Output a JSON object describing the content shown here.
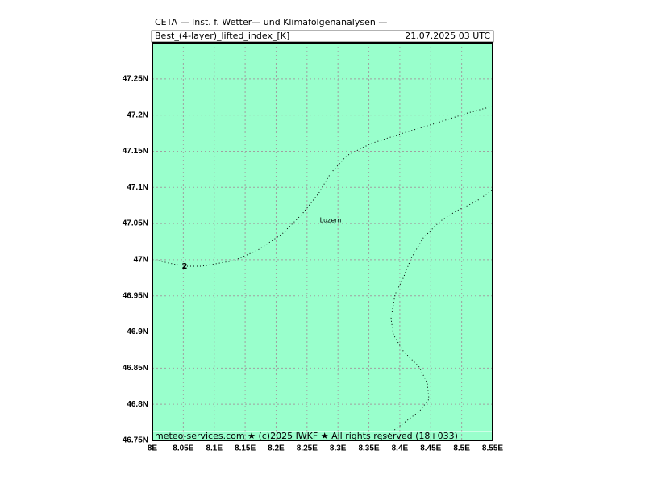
{
  "header": {
    "line1": "CETA — Inst. f. Wetter— und Klimafolgenanalysen —",
    "field": "Best_(4-layer)_lifted_index_[K]",
    "time": "21.07.2025 03 UTC"
  },
  "map": {
    "xlim": [
      8,
      8.55
    ],
    "ylim": [
      46.75,
      47.3
    ],
    "xticks": [
      {
        "value": 8,
        "label": "8E"
      },
      {
        "value": 8.05,
        "label": "8.05E"
      },
      {
        "value": 8.1,
        "label": "8.1E"
      },
      {
        "value": 8.15,
        "label": "8.15E"
      },
      {
        "value": 8.2,
        "label": "8.2E"
      },
      {
        "value": 8.25,
        "label": "8.25E"
      },
      {
        "value": 8.3,
        "label": "8.3E"
      },
      {
        "value": 8.35,
        "label": "8.35E"
      },
      {
        "value": 8.4,
        "label": "8.4E"
      },
      {
        "value": 8.45,
        "label": "8.45E"
      },
      {
        "value": 8.5,
        "label": "8.5E"
      },
      {
        "value": 8.55,
        "label": "8.55E"
      }
    ],
    "yticks": [
      {
        "value": 46.75,
        "label": "46.75N"
      },
      {
        "value": 46.8,
        "label": "46.8N"
      },
      {
        "value": 46.85,
        "label": "46.85N"
      },
      {
        "value": 46.9,
        "label": "46.9N"
      },
      {
        "value": 46.95,
        "label": "46.95N"
      },
      {
        "value": 47,
        "label": "47N"
      },
      {
        "value": 47.05,
        "label": "47.05N"
      },
      {
        "value": 47.1,
        "label": "47.1N"
      },
      {
        "value": 47.15,
        "label": "47.15N"
      },
      {
        "value": 47.2,
        "label": "47.2N"
      },
      {
        "value": 47.25,
        "label": "47.25N"
      }
    ],
    "city": "Luzern",
    "contour_label": 2
  },
  "footer": "meteo-services.com ★ (c)2025 IWKF ★ All rights reserved (18+033)"
}
